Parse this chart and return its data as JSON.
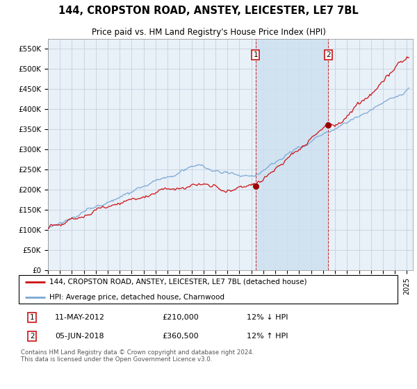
{
  "title": "144, CROPSTON ROAD, ANSTEY, LEICESTER, LE7 7BL",
  "subtitle": "Price paid vs. HM Land Registry's House Price Index (HPI)",
  "ylabel_ticks": [
    "£0",
    "£50K",
    "£100K",
    "£150K",
    "£200K",
    "£250K",
    "£300K",
    "£350K",
    "£400K",
    "£450K",
    "£500K",
    "£550K"
  ],
  "ytick_values": [
    0,
    50000,
    100000,
    150000,
    200000,
    250000,
    300000,
    350000,
    400000,
    450000,
    500000,
    550000
  ],
  "ylim": [
    0,
    575000
  ],
  "xlim_start": 1995.0,
  "xlim_end": 2025.5,
  "legend_line1": "144, CROPSTON ROAD, ANSTEY, LEICESTER, LE7 7BL (detached house)",
  "legend_line2": "HPI: Average price, detached house, Charnwood",
  "sale1_date": "11-MAY-2012",
  "sale1_price": "£210,000",
  "sale1_hpi": "12% ↓ HPI",
  "sale1_x": 2012.36,
  "sale1_y": 210000,
  "sale2_date": "05-JUN-2018",
  "sale2_price": "£360,500",
  "sale2_hpi": "12% ↑ HPI",
  "sale2_x": 2018.43,
  "sale2_y": 360500,
  "vline1_x": 2012.36,
  "vline2_x": 2018.43,
  "copyright": "Contains HM Land Registry data © Crown copyright and database right 2024.\nThis data is licensed under the Open Government Licence v3.0.",
  "hpi_color": "#7aa8d4",
  "price_color": "#cc1111",
  "marker_color": "#990000",
  "shade_color": "#cce0f0",
  "background_color": "#e8f0f8",
  "grid_color": "#c0ccd8"
}
